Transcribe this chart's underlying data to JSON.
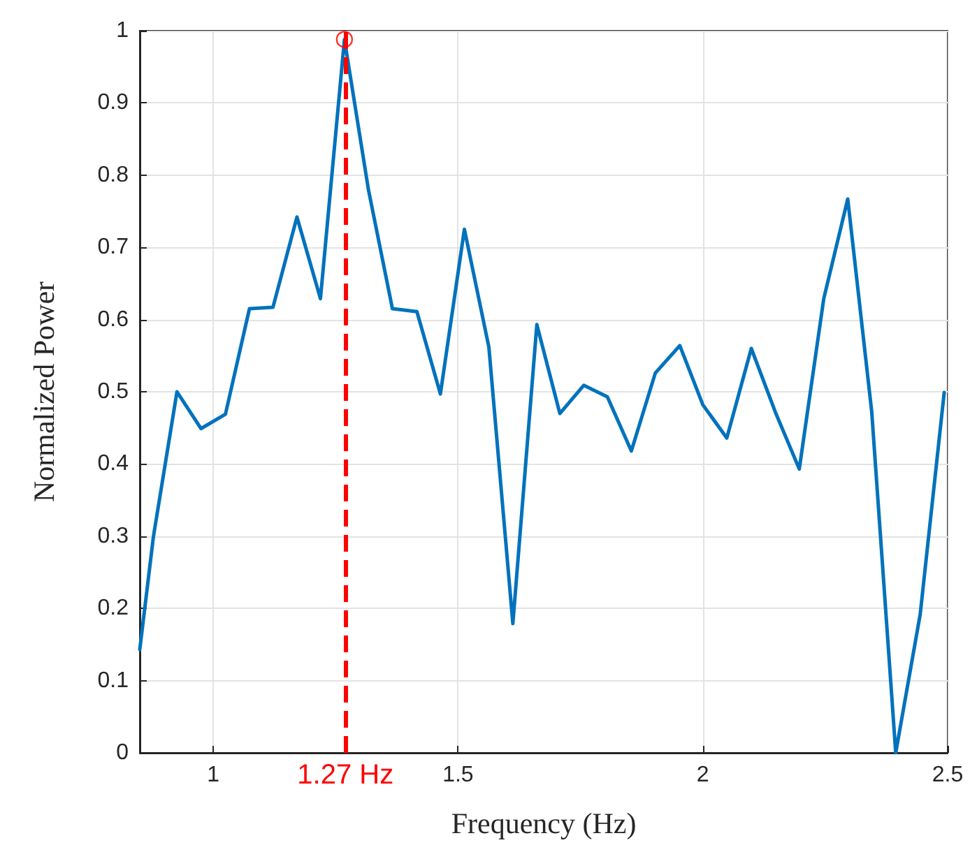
{
  "chart_data": {
    "type": "line",
    "xlabel": "Frequency (Hz)",
    "ylabel": "Normalized Power",
    "xlim": [
      0.85,
      2.5
    ],
    "xticks": [
      1,
      1.5,
      2,
      2.5
    ],
    "ylim": [
      0,
      1
    ],
    "yticks": [
      0,
      0.1,
      0.2,
      0.3,
      0.4,
      0.5,
      0.6,
      0.7,
      0.8,
      0.9,
      1
    ],
    "grid": true,
    "marker": "none",
    "line_style": "solid",
    "series": [
      {
        "color": "#0072bd",
        "x": [
          0.85,
          0.878,
          0.926,
          0.975,
          1.025,
          1.074,
          1.122,
          1.171,
          1.219,
          1.268,
          1.317,
          1.366,
          1.416,
          1.464,
          1.513,
          1.563,
          1.612,
          1.661,
          1.708,
          1.757,
          1.805,
          1.854,
          1.903,
          1.953,
          2.0,
          2.049,
          2.099,
          2.148,
          2.197,
          2.247,
          2.296,
          2.345,
          2.394,
          2.444,
          2.493
        ],
        "values": [
          0.143,
          0.3,
          0.5,
          0.449,
          0.469,
          0.615,
          0.617,
          0.742,
          0.629,
          0.988,
          0.78,
          0.615,
          0.611,
          0.497,
          0.725,
          0.562,
          0.179,
          0.593,
          0.47,
          0.509,
          0.493,
          0.418,
          0.526,
          0.564,
          0.482,
          0.436,
          0.56,
          0.472,
          0.393,
          0.629,
          0.767,
          0.472,
          0.0,
          0.192,
          0.499
        ]
      },
      {
        "type": "scatter",
        "marker": "circle",
        "color": "#ff0000",
        "x": [
          1.268
        ],
        "values": [
          0.988
        ]
      }
    ],
    "ref_lines": [
      {
        "axis": "x",
        "value": 1.27,
        "label": "1.27 Hz",
        "color": "#ff0000",
        "line_style": "dashed"
      }
    ]
  }
}
